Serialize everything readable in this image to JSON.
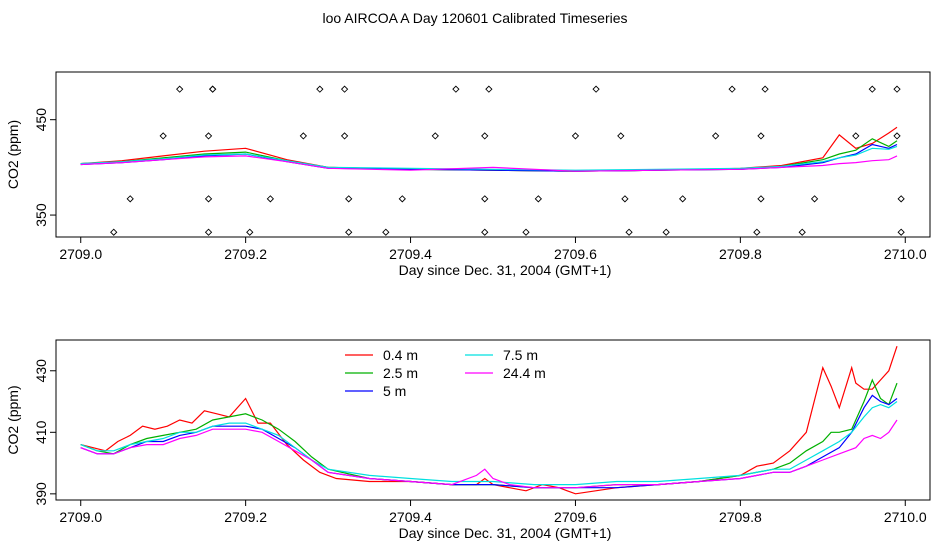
{
  "title": "loo AIRCOA A  Day 120601  Calibrated Timeseries",
  "chart_data": [
    {
      "type": "line",
      "panel": "top",
      "title": "",
      "xlabel": "Day since Dec. 31, 2004 (GMT+1)",
      "ylabel": "CO2 (ppm)",
      "xlim": [
        2708.97,
        2710.03
      ],
      "ylim": [
        327,
        500
      ],
      "xticks": [
        2709.0,
        2709.2,
        2709.4,
        2709.6,
        2709.8,
        2710.0
      ],
      "xtick_labels": [
        "2709.0",
        "2709.2",
        "2709.4",
        "2709.6",
        "2709.8",
        "2710.0"
      ],
      "yticks": [
        350,
        450
      ],
      "ytick_labels": [
        "350",
        "450"
      ],
      "grid": false,
      "series": [
        {
          "color": "#ff0000",
          "x": [
            2709.0,
            2709.05,
            2709.1,
            2709.15,
            2709.2,
            2709.25,
            2709.3,
            2709.4,
            2709.5,
            2709.6,
            2709.7,
            2709.8,
            2709.85,
            2709.9,
            2709.92,
            2709.94,
            2709.96,
            2709.98,
            2709.99
          ],
          "values": [
            404,
            407,
            412,
            417,
            420,
            408,
            400,
            398,
            397,
            396,
            397,
            399,
            402,
            410,
            434,
            420,
            425,
            436,
            442
          ]
        },
        {
          "color": "#00b000",
          "x": [
            2709.0,
            2709.05,
            2709.1,
            2709.15,
            2709.2,
            2709.25,
            2709.3,
            2709.4,
            2709.5,
            2709.6,
            2709.7,
            2709.8,
            2709.85,
            2709.9,
            2709.92,
            2709.94,
            2709.96,
            2709.98,
            2709.99
          ],
          "values": [
            404,
            406,
            410,
            414,
            416,
            407,
            400,
            398,
            397,
            396,
            397,
            398,
            401,
            408,
            414,
            418,
            430,
            422,
            428
          ]
        },
        {
          "color": "#0000ff",
          "x": [
            2709.0,
            2709.05,
            2709.1,
            2709.15,
            2709.2,
            2709.25,
            2709.3,
            2709.4,
            2709.5,
            2709.6,
            2709.7,
            2709.8,
            2709.85,
            2709.9,
            2709.92,
            2709.94,
            2709.96,
            2709.98,
            2709.99
          ],
          "values": [
            403,
            405,
            408,
            412,
            414,
            406,
            399,
            398,
            397,
            396,
            397,
            398,
            400,
            405,
            410,
            414,
            424,
            420,
            424
          ]
        },
        {
          "color": "#00e0e0",
          "x": [
            2709.0,
            2709.05,
            2709.1,
            2709.15,
            2709.2,
            2709.25,
            2709.3,
            2709.4,
            2709.5,
            2709.6,
            2709.7,
            2709.8,
            2709.85,
            2709.9,
            2709.92,
            2709.94,
            2709.96,
            2709.98,
            2709.99
          ],
          "values": [
            404,
            406,
            409,
            413,
            414,
            407,
            400,
            399,
            398,
            397,
            398,
            399,
            401,
            406,
            410,
            413,
            420,
            419,
            422
          ]
        },
        {
          "color": "#ff00ff",
          "x": [
            2709.0,
            2709.05,
            2709.1,
            2709.15,
            2709.2,
            2709.25,
            2709.3,
            2709.4,
            2709.5,
            2709.6,
            2709.7,
            2709.8,
            2709.85,
            2709.9,
            2709.92,
            2709.94,
            2709.96,
            2709.98,
            2709.99
          ],
          "values": [
            403,
            405,
            408,
            411,
            412,
            406,
            399,
            397,
            400,
            396,
            397,
            398,
            400,
            402,
            404,
            405,
            407,
            408,
            412
          ]
        }
      ],
      "markers": {
        "x": [
          2709.04,
          2709.06,
          2709.1,
          2709.12,
          2709.155,
          2709.155,
          2709.155,
          2709.16,
          2709.16,
          2709.205,
          2709.23,
          2709.27,
          2709.29,
          2709.32,
          2709.32,
          2709.325,
          2709.325,
          2709.37,
          2709.39,
          2709.43,
          2709.455,
          2709.49,
          2709.49,
          2709.49,
          2709.495,
          2709.54,
          2709.555,
          2709.6,
          2709.625,
          2709.655,
          2709.66,
          2709.665,
          2709.71,
          2709.73,
          2709.77,
          2709.79,
          2709.82,
          2709.825,
          2709.825,
          2709.83,
          2709.875,
          2709.89,
          2709.94,
          2709.96,
          2709.99,
          2709.99,
          2709.995,
          2709.995
        ],
        "values": [
          332,
          367,
          433,
          482,
          332,
          367,
          433,
          482,
          482,
          332,
          367,
          433,
          482,
          433,
          482,
          367,
          332,
          332,
          367,
          433,
          482,
          332,
          367,
          433,
          482,
          332,
          367,
          433,
          482,
          433,
          367,
          332,
          332,
          367,
          433,
          482,
          332,
          367,
          433,
          482,
          332,
          367,
          433,
          482,
          482,
          433,
          367,
          332
        ]
      }
    },
    {
      "type": "line",
      "panel": "bottom",
      "title": "",
      "xlabel": "Day since Dec. 31, 2004 (GMT+1)",
      "ylabel": "CO2 (ppm)",
      "xlim": [
        2708.97,
        2710.03
      ],
      "ylim": [
        388,
        440
      ],
      "xticks": [
        2709.0,
        2709.2,
        2709.4,
        2709.6,
        2709.8,
        2710.0
      ],
      "xtick_labels": [
        "2709.0",
        "2709.2",
        "2709.4",
        "2709.6",
        "2709.8",
        "2710.0"
      ],
      "yticks": [
        390,
        410,
        430
      ],
      "ytick_labels": [
        "390",
        "410",
        "430"
      ],
      "grid": false,
      "legend_position": "top-left",
      "series": [
        {
          "name": "0.4 m",
          "color": "#ff0000",
          "x": [
            2709.0,
            2709.015,
            2709.03,
            2709.045,
            2709.06,
            2709.075,
            2709.09,
            2709.105,
            2709.12,
            2709.135,
            2709.15,
            2709.165,
            2709.18,
            2709.2,
            2709.215,
            2709.23,
            2709.25,
            2709.27,
            2709.29,
            2709.31,
            2709.35,
            2709.4,
            2709.45,
            2709.48,
            2709.49,
            2709.5,
            2709.52,
            2709.54,
            2709.56,
            2709.58,
            2709.59,
            2709.6,
            2709.65,
            2709.7,
            2709.75,
            2709.8,
            2709.82,
            2709.84,
            2709.86,
            2709.88,
            2709.9,
            2709.91,
            2709.92,
            2709.935,
            2709.94,
            2709.95,
            2709.96,
            2709.97,
            2709.98,
            2709.99
          ],
          "values": [
            406,
            405,
            404,
            407,
            409,
            412,
            411,
            412,
            414,
            413,
            417,
            416,
            415,
            421,
            413,
            413,
            406,
            401,
            397,
            395,
            394,
            394,
            393,
            393,
            395,
            393,
            392,
            391,
            393,
            392,
            391,
            390,
            392,
            393,
            394,
            396,
            399,
            400,
            404,
            410,
            431,
            425,
            418,
            431,
            426,
            424,
            424,
            427,
            430,
            438
          ]
        },
        {
          "name": "2.5 m",
          "color": "#00b000",
          "x": [
            2709.0,
            2709.02,
            2709.04,
            2709.06,
            2709.08,
            2709.1,
            2709.12,
            2709.14,
            2709.16,
            2709.18,
            2709.2,
            2709.22,
            2709.24,
            2709.26,
            2709.28,
            2709.3,
            2709.35,
            2709.4,
            2709.45,
            2709.5,
            2709.55,
            2709.6,
            2709.65,
            2709.7,
            2709.75,
            2709.8,
            2709.84,
            2709.86,
            2709.88,
            2709.9,
            2709.91,
            2709.92,
            2709.935,
            2709.95,
            2709.96,
            2709.97,
            2709.98,
            2709.99
          ],
          "values": [
            406,
            404,
            403,
            406,
            408,
            409,
            410,
            411,
            414,
            415,
            416,
            414,
            411,
            407,
            402,
            398,
            395,
            394,
            393,
            393,
            392,
            392,
            393,
            393,
            394,
            396,
            398,
            400,
            404,
            407,
            410,
            410,
            411,
            420,
            427,
            421,
            419,
            426
          ]
        },
        {
          "name": "5 m",
          "color": "#0000ff",
          "x": [
            2709.0,
            2709.02,
            2709.04,
            2709.06,
            2709.08,
            2709.1,
            2709.12,
            2709.14,
            2709.16,
            2709.18,
            2709.2,
            2709.22,
            2709.24,
            2709.26,
            2709.28,
            2709.3,
            2709.35,
            2709.4,
            2709.45,
            2709.5,
            2709.55,
            2709.6,
            2709.65,
            2709.7,
            2709.75,
            2709.8,
            2709.84,
            2709.86,
            2709.88,
            2709.9,
            2709.92,
            2709.935,
            2709.95,
            2709.96,
            2709.97,
            2709.98,
            2709.99
          ],
          "values": [
            405,
            403,
            403,
            405,
            407,
            407,
            409,
            410,
            412,
            412,
            412,
            411,
            408,
            405,
            401,
            397,
            395,
            394,
            393,
            393,
            392,
            392,
            392,
            393,
            394,
            395,
            397,
            397,
            399,
            402,
            405,
            410,
            418,
            422,
            420,
            419,
            421
          ]
        },
        {
          "name": "7.5 m",
          "color": "#00e0e0",
          "x": [
            2709.0,
            2709.02,
            2709.04,
            2709.06,
            2709.08,
            2709.1,
            2709.12,
            2709.14,
            2709.16,
            2709.18,
            2709.2,
            2709.22,
            2709.24,
            2709.26,
            2709.28,
            2709.3,
            2709.35,
            2709.4,
            2709.45,
            2709.5,
            2709.55,
            2709.6,
            2709.65,
            2709.7,
            2709.75,
            2709.8,
            2709.84,
            2709.86,
            2709.88,
            2709.9,
            2709.92,
            2709.935,
            2709.95,
            2709.96,
            2709.97,
            2709.98,
            2709.99
          ],
          "values": [
            406,
            404,
            404,
            406,
            407,
            408,
            410,
            410,
            412,
            413,
            413,
            411,
            409,
            405,
            401,
            398,
            396,
            395,
            394,
            394,
            393,
            393,
            394,
            394,
            395,
            396,
            398,
            398,
            401,
            404,
            407,
            410,
            415,
            418,
            419,
            418,
            420
          ]
        },
        {
          "name": "24.4 m",
          "color": "#ff00ff",
          "x": [
            2709.0,
            2709.02,
            2709.04,
            2709.06,
            2709.08,
            2709.1,
            2709.12,
            2709.14,
            2709.16,
            2709.18,
            2709.2,
            2709.22,
            2709.24,
            2709.26,
            2709.28,
            2709.3,
            2709.35,
            2709.4,
            2709.45,
            2709.48,
            2709.49,
            2709.5,
            2709.52,
            2709.55,
            2709.6,
            2709.65,
            2709.7,
            2709.75,
            2709.8,
            2709.84,
            2709.86,
            2709.88,
            2709.9,
            2709.92,
            2709.94,
            2709.95,
            2709.96,
            2709.97,
            2709.98,
            2709.99
          ],
          "values": [
            405,
            403,
            403,
            405,
            406,
            406,
            408,
            409,
            411,
            411,
            411,
            410,
            407,
            404,
            401,
            397,
            395,
            394,
            393,
            396,
            398,
            395,
            393,
            392,
            392,
            393,
            393,
            394,
            395,
            397,
            397,
            399,
            401,
            403,
            405,
            408,
            409,
            408,
            410,
            414
          ]
        }
      ]
    }
  ]
}
